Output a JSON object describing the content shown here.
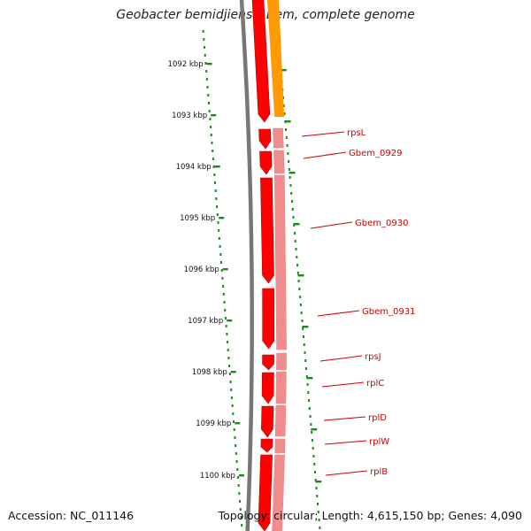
{
  "title": "Geobacter bemidjiensis Bem, complete genome",
  "accession": "Accession: NC_011146",
  "topology": "Topology: circular; Length: 4,615,150 bp; Genes: 4,090",
  "colors": {
    "gene_forward": "#ff0000",
    "gene_light": "#f08c8c",
    "orange_feature": "#ff9a00",
    "backbone": "#777777",
    "tick": "#1a8a1a",
    "label": "#d00000"
  },
  "kbp_ticks": [
    "1092 kbp",
    "1093 kbp",
    "1094 kbp",
    "1095 kbp",
    "1096 kbp",
    "1097 kbp",
    "1098 kbp",
    "1099 kbp",
    "1100 kbp"
  ],
  "genes": [
    "rpsL",
    "Gbem_0929",
    "Gbem_0930",
    "Gbem_0931",
    "rpsJ",
    "rplC",
    "rplD",
    "rplW",
    "rplB"
  ]
}
